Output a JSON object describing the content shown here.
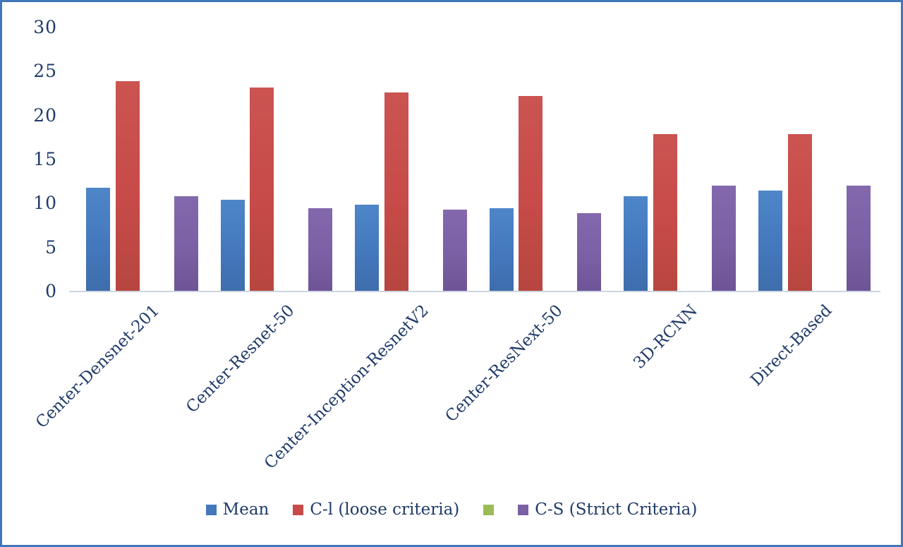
{
  "chart_data": {
    "type": "bar",
    "title": "",
    "xlabel": "",
    "ylabel": "",
    "ylim": [
      0,
      30
    ],
    "yticks": [
      0,
      5,
      10,
      15,
      20,
      25,
      30
    ],
    "grid": false,
    "legend_position": "bottom",
    "categories": [
      "Center-Densnet-201",
      "Center-Resnet-50",
      "Center-Inception-ResnetV2",
      "Center-ResNext-50",
      "3D-RCNN",
      "Direct-Based"
    ],
    "series": [
      {
        "name": "Mean",
        "key": "mean",
        "color": "#4478bd",
        "values": [
          11.8,
          10.4,
          9.9,
          9.5,
          10.8,
          11.5
        ]
      },
      {
        "name": "C-l (loose criteria)",
        "key": "c-l",
        "color": "#c74b48",
        "values": [
          23.9,
          23.2,
          22.6,
          22.2,
          17.9,
          17.9
        ]
      },
      {
        "name": "",
        "key": "green",
        "color": "#9bbb59",
        "values": [
          0,
          0,
          0,
          0,
          0,
          0
        ]
      },
      {
        "name": "C-S (Strict Criteria)",
        "key": "c-s",
        "color": "#7c60a5",
        "values": [
          10.8,
          9.5,
          9.3,
          8.9,
          12.0,
          12.0
        ]
      }
    ]
  },
  "legend": {
    "items": [
      {
        "key": "mean",
        "label": "Mean",
        "color": "#4478bd"
      },
      {
        "key": "c-l",
        "label": "C-l (loose criteria)",
        "color": "#c74b48"
      },
      {
        "key": "green",
        "label": "",
        "color": "#9bbb59"
      },
      {
        "key": "c-s",
        "label": "C-S (Strict Criteria)",
        "color": "#7c60a5"
      }
    ]
  },
  "colors": {
    "frame_border": "#4177ba",
    "axis_line": "#cbd5e2",
    "text": "#1f3a68"
  }
}
